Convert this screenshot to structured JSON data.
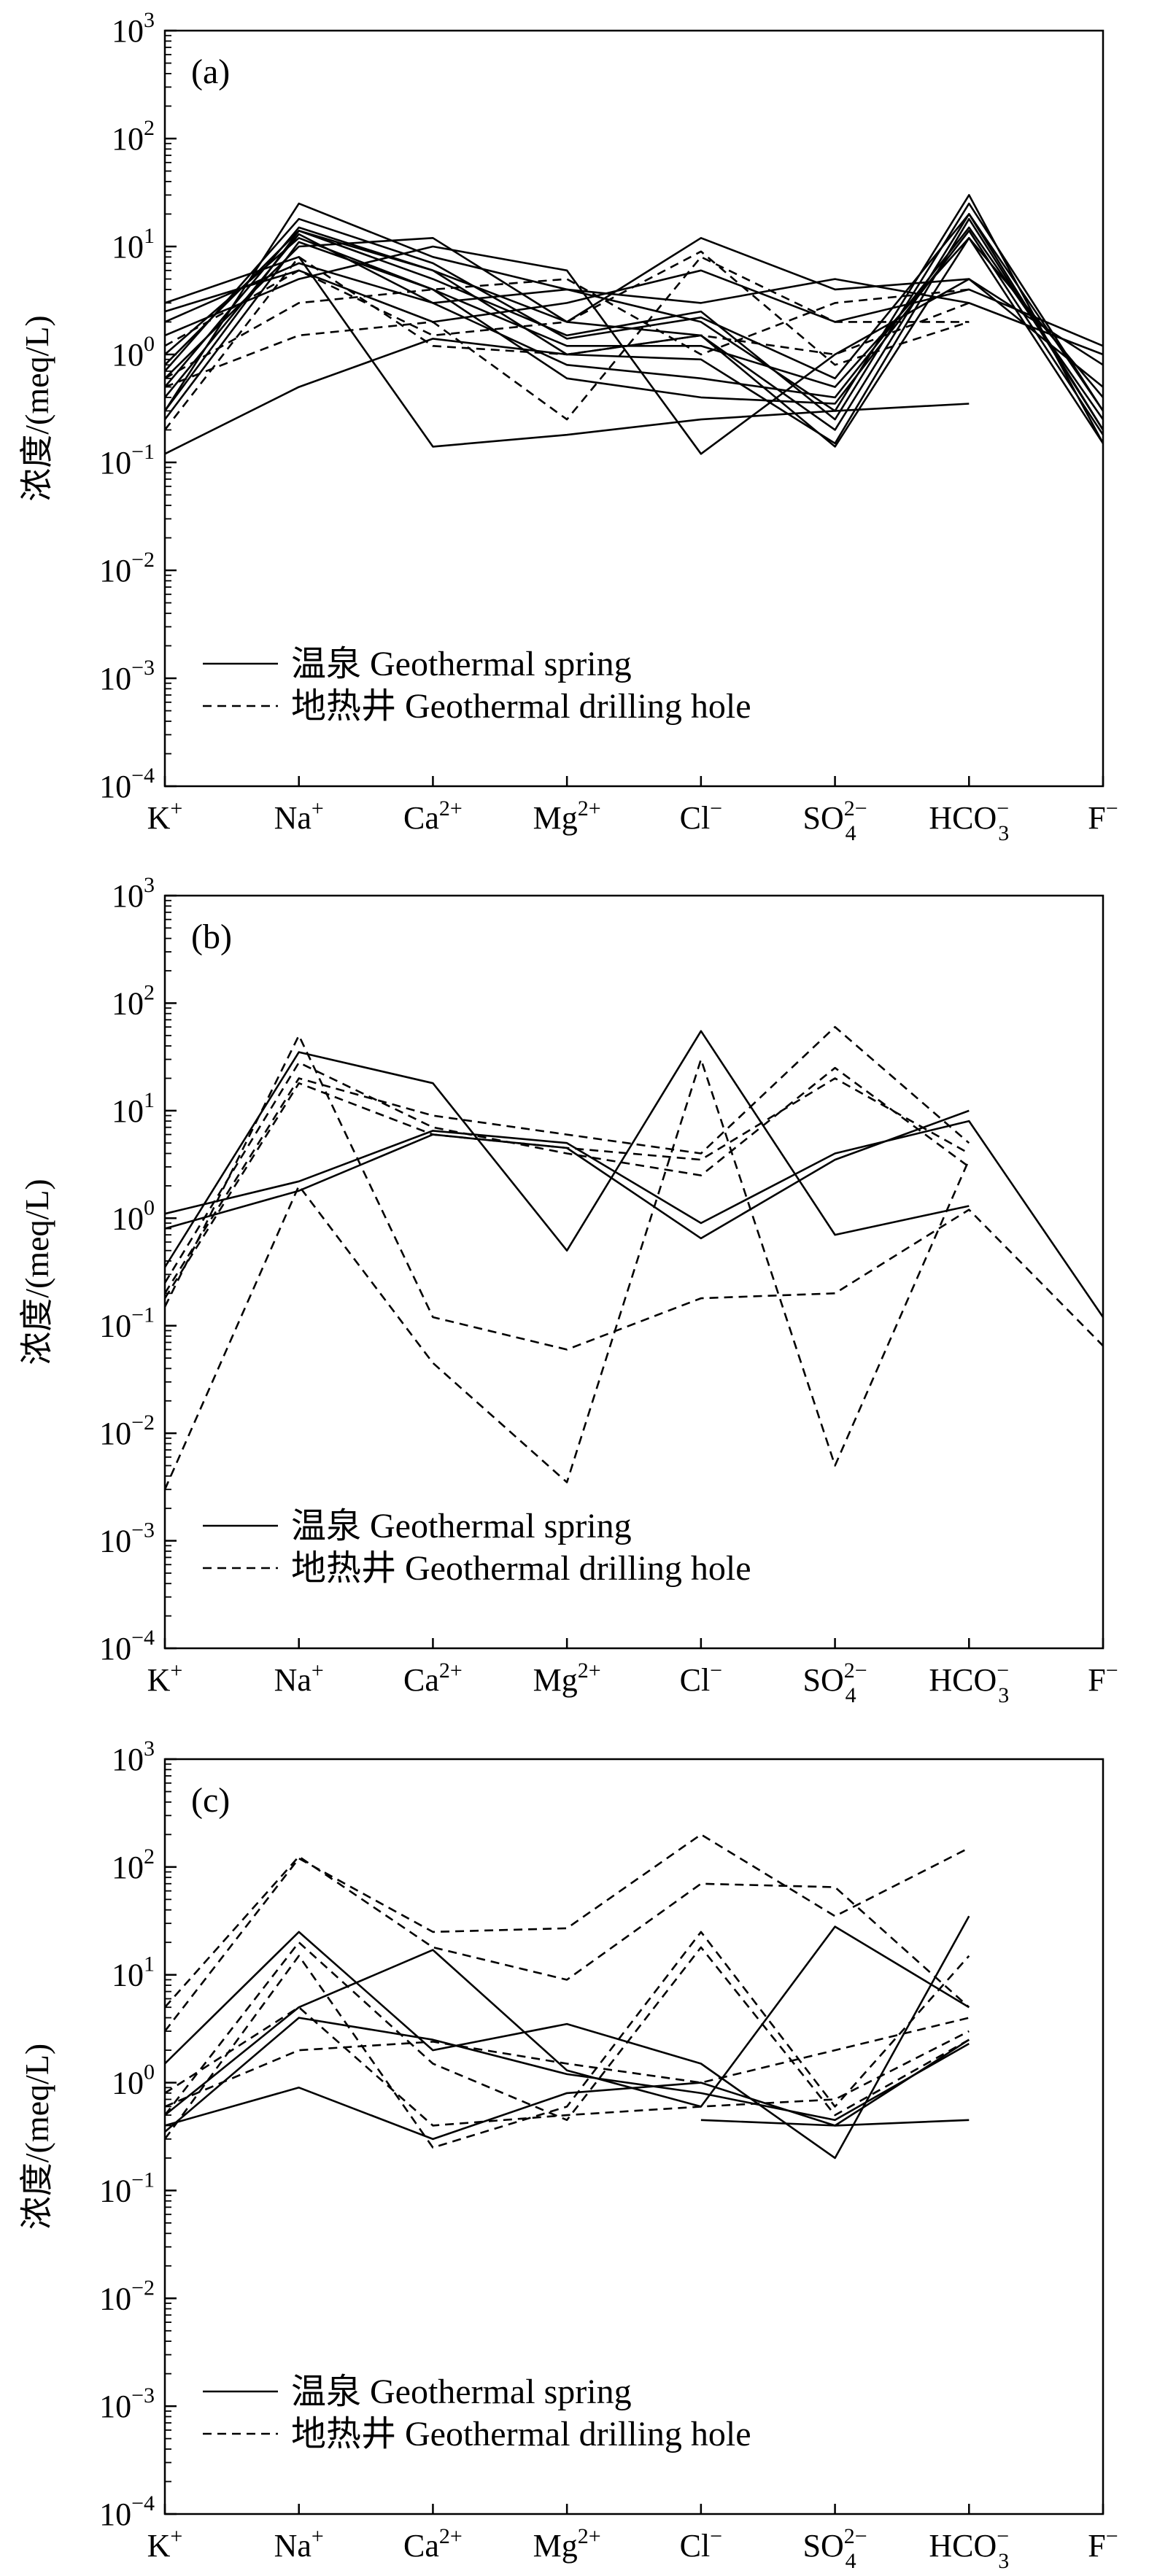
{
  "chart_data": [
    {
      "type": "line",
      "panel_label": "(a)",
      "categories": [
        "K+",
        "Na+",
        "Ca2+",
        "Mg2+",
        "Cl−",
        "SO42−",
        "HCO3−",
        "F−"
      ],
      "ylabel": "浓度/(meq/L)",
      "yscale": "log",
      "ylim": [
        0.0001,
        1000
      ],
      "legend": [
        {
          "label": "温泉 Geothermal spring",
          "style": "solid"
        },
        {
          "label": "地热井 Geothermal drilling hole",
          "style": "dashed"
        }
      ],
      "legend_position": "lower-left",
      "series": [
        {
          "style": "solid",
          "values": [
            0.12,
            0.5,
            1.4,
            1.0,
            0.9,
            0.15,
            18,
            0.2
          ]
        },
        {
          "style": "solid",
          "values": [
            0.3,
            25,
            8,
            4,
            2,
            0.3,
            30,
            0.15
          ]
        },
        {
          "style": "solid",
          "values": [
            0.5,
            15,
            6,
            2,
            1.5,
            0.2,
            20,
            0.2
          ]
        },
        {
          "style": "solid",
          "values": [
            0.8,
            14,
            5,
            1.5,
            2.5,
            0.25,
            25,
            0.3
          ]
        },
        {
          "style": "solid",
          "values": [
            1.0,
            12,
            4,
            1.2,
            1.2,
            0.5,
            12,
            0.4
          ]
        },
        {
          "style": "solid",
          "values": [
            0.4,
            13,
            3,
            0.8,
            0.6,
            0.4,
            15,
            0.25
          ]
        },
        {
          "style": "solid",
          "values": [
            2.5,
            6,
            2,
            3,
            6,
            2,
            4,
            1.2
          ]
        },
        {
          "style": "solid",
          "values": [
            3,
            8,
            0.14,
            0.18,
            0.25,
            0.3,
            0.35,
            null
          ]
        },
        {
          "style": "solid",
          "values": [
            1.5,
            5,
            10,
            6,
            0.12,
            1.0,
            5,
            0.8
          ]
        },
        {
          "style": "solid",
          "values": [
            0.6,
            10,
            12,
            2,
            12,
            4,
            5,
            0.5
          ]
        },
        {
          "style": "solid",
          "values": [
            0.3,
            14,
            6,
            1,
            1.5,
            0.14,
            12,
            0.15
          ]
        },
        {
          "style": "solid",
          "values": [
            2,
            7,
            3,
            4,
            3,
            5,
            3,
            1.0
          ]
        },
        {
          "style": "solid",
          "values": [
            0.7,
            18,
            7,
            1.4,
            2.2,
            0.6,
            20,
            0.3
          ]
        },
        {
          "style": "solid",
          "values": [
            0.25,
            11,
            4,
            0.6,
            0.4,
            0.35,
            14,
            0.18
          ]
        },
        {
          "style": "dashed",
          "values": [
            0.5,
            1.5,
            2,
            0.25,
            8,
            2,
            2,
            null
          ]
        },
        {
          "style": "dashed",
          "values": [
            0.2,
            8,
            1.2,
            1,
            1.5,
            1,
            3,
            null
          ]
        },
        {
          "style": "dashed",
          "values": [
            1.2,
            6,
            1.5,
            2,
            9,
            0.8,
            2,
            null
          ]
        },
        {
          "style": "dashed",
          "values": [
            0.6,
            3,
            4,
            5,
            1,
            3,
            4,
            null
          ]
        }
      ]
    },
    {
      "type": "line",
      "panel_label": "(b)",
      "categories": [
        "K+",
        "Na+",
        "Ca2+",
        "Mg2+",
        "Cl−",
        "SO42−",
        "HCO3−",
        "F−"
      ],
      "ylabel": "浓度/(meq/L)",
      "yscale": "log",
      "ylim": [
        0.0001,
        1000
      ],
      "legend": [
        {
          "label": "温泉 Geothermal spring",
          "style": "solid"
        },
        {
          "label": "地热井 Geothermal drilling hole",
          "style": "dashed"
        }
      ],
      "legend_position": "lower-left",
      "series": [
        {
          "style": "solid",
          "values": [
            1.1,
            2.2,
            6.5,
            5,
            0.9,
            4,
            8,
            0.12
          ]
        },
        {
          "style": "solid",
          "values": [
            0.35,
            35,
            18,
            0.5,
            55,
            0.7,
            1.3,
            null
          ]
        },
        {
          "style": "solid",
          "values": [
            0.8,
            1.8,
            6,
            4.5,
            0.65,
            3.5,
            10,
            null
          ]
        },
        {
          "style": "dashed",
          "values": [
            0.003,
            2,
            0.045,
            0.0035,
            30,
            0.005,
            3.5,
            null
          ]
        },
        {
          "style": "dashed",
          "values": [
            0.15,
            50,
            0.12,
            0.06,
            0.18,
            0.2,
            1.2,
            0.065
          ]
        },
        {
          "style": "dashed",
          "values": [
            0.2,
            20,
            9,
            6,
            4,
            60,
            5,
            null
          ]
        },
        {
          "style": "dashed",
          "values": [
            0.25,
            28,
            7,
            4,
            2.5,
            25,
            3,
            null
          ]
        },
        {
          "style": "dashed",
          "values": [
            0.18,
            18,
            6,
            4.5,
            3.5,
            20,
            4,
            null
          ]
        }
      ]
    },
    {
      "type": "line",
      "panel_label": "(c)",
      "categories": [
        "K+",
        "Na+",
        "Ca2+",
        "Mg2+",
        "Cl−",
        "SO42−",
        "HCO3−",
        "F−"
      ],
      "ylabel": "浓度/(meq/L)",
      "yscale": "log",
      "ylim": [
        0.0001,
        1000
      ],
      "legend": [
        {
          "label": "温泉 Geothermal spring",
          "style": "solid"
        },
        {
          "label": "地热井 Geothermal drilling hole",
          "style": "dashed"
        }
      ],
      "legend_position": "lower-left",
      "series": [
        {
          "style": "solid",
          "values": [
            1.5,
            25,
            2,
            3.5,
            1.5,
            0.2,
            35,
            null
          ]
        },
        {
          "style": "solid",
          "values": [
            0.4,
            0.9,
            0.3,
            0.8,
            1,
            0.4,
            2.5,
            null
          ]
        },
        {
          "style": "solid",
          "values": [
            0.5,
            5,
            17,
            1.3,
            0.6,
            28,
            5,
            null
          ]
        },
        {
          "style": "solid",
          "values": [
            0.35,
            4,
            2.5,
            1.2,
            0.8,
            0.45,
            2.3,
            null
          ]
        },
        {
          "style": "solid",
          "values": [
            null,
            null,
            null,
            null,
            0.45,
            0.4,
            0.45,
            null
          ]
        },
        {
          "style": "dashed",
          "values": [
            5,
            125,
            18,
            9,
            70,
            65,
            5,
            null
          ]
        },
        {
          "style": "dashed",
          "values": [
            3,
            120,
            25,
            27,
            200,
            35,
            150,
            null
          ]
        },
        {
          "style": "dashed",
          "values": [
            0.6,
            2,
            2.4,
            1.5,
            1,
            2,
            4,
            null
          ]
        },
        {
          "style": "dashed",
          "values": [
            0.3,
            15,
            0.25,
            0.6,
            25,
            0.6,
            15,
            null
          ]
        },
        {
          "style": "dashed",
          "values": [
            0.8,
            5,
            0.4,
            0.5,
            0.6,
            0.7,
            3,
            null
          ]
        },
        {
          "style": "dashed",
          "values": [
            0.5,
            20,
            1.5,
            0.45,
            18,
            0.5,
            2.5,
            null
          ]
        }
      ]
    }
  ]
}
